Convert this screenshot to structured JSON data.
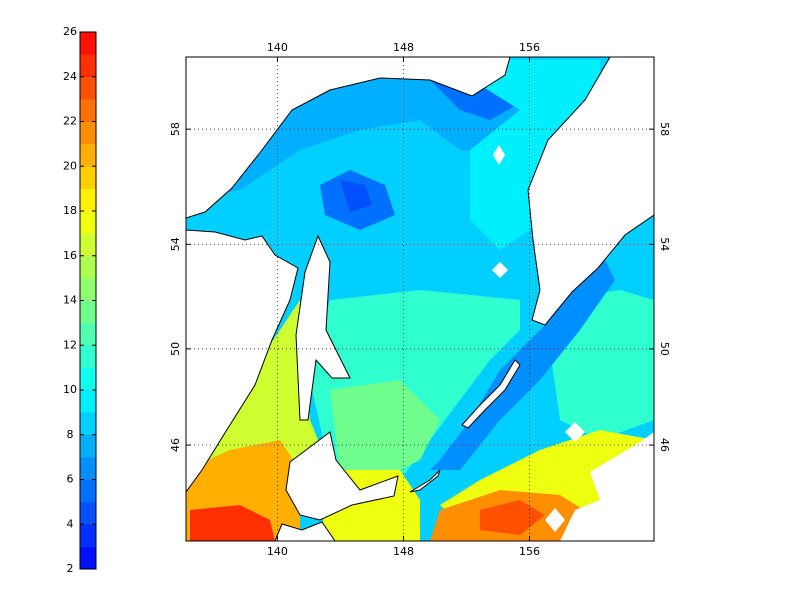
{
  "colorbar": {
    "lim": [
      2,
      26
    ],
    "ticks": [
      2,
      4,
      6,
      8,
      10,
      12,
      14,
      16,
      18,
      20,
      22,
      24,
      26
    ],
    "colors": [
      "#0010ff",
      "#0030ff",
      "#0050ff",
      "#0070ff",
      "#008fff",
      "#00afff",
      "#00cfff",
      "#00efff",
      "#10ffef",
      "#30ffcf",
      "#50ffaf",
      "#70ff8f",
      "#8fff70",
      "#afff50",
      "#cfff30",
      "#efff10",
      "#ffef00",
      "#ffcf00",
      "#ffaf00",
      "#ff8f00",
      "#ff7000",
      "#ff5000",
      "#ff3000",
      "#ff1000"
    ]
  },
  "map": {
    "projection": "mercator",
    "xlim": [
      134.2,
      163.9
    ],
    "ylim": [
      41.7,
      60.3
    ],
    "xticks": [
      140,
      148,
      156
    ],
    "yticks": [
      46,
      50,
      54,
      58
    ],
    "grid": true
  }
}
